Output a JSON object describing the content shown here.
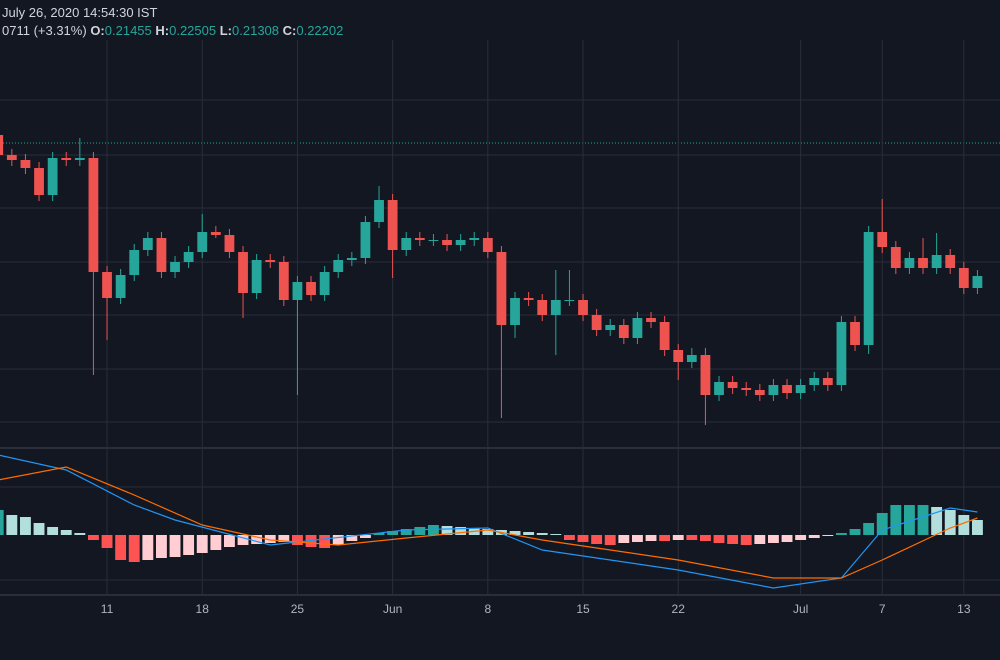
{
  "header": {
    "datetime": "July 26, 2020 14:54:30 IST",
    "change": "0711 (+3.31%)",
    "ohlc": [
      {
        "label": "O:",
        "value": 0.21455
      },
      {
        "label": "H:",
        "value": 0.22505
      },
      {
        "label": "L:",
        "value": 0.21308
      },
      {
        "label": "C:",
        "value": 0.22202
      }
    ]
  },
  "chart_data": {
    "type": "candlestick",
    "up_color": "#26a69a",
    "down_color": "#ef5350",
    "xlim": [
      0.13,
      73.66
    ],
    "ylim": [
      0.18,
      0.2845
    ],
    "xticks": [
      {
        "value": 8,
        "label": "11"
      },
      {
        "value": 15,
        "label": "18"
      },
      {
        "value": 22,
        "label": "25"
      },
      {
        "value": 29,
        "label": "Jun"
      },
      {
        "value": 36,
        "label": "8"
      },
      {
        "value": 43,
        "label": "15"
      },
      {
        "value": 50,
        "label": "22"
      },
      {
        "value": 59,
        "label": "Jul"
      },
      {
        "value": 65,
        "label": "7"
      },
      {
        "value": 71,
        "label": "13"
      }
    ],
    "open": [
      0.25825,
      0.25325,
      0.252,
      0.25,
      0.24325,
      0.2525,
      0.252,
      0.2525,
      0.224,
      0.2175,
      0.22325,
      0.2295,
      0.2325,
      0.224,
      0.2265,
      0.229,
      0.234,
      0.23325,
      0.229,
      0.21875,
      0.227,
      0.2265,
      0.217,
      0.2215,
      0.21825,
      0.224,
      0.227,
      0.2275,
      0.2365,
      0.242,
      0.2295,
      0.2325,
      0.232,
      0.232,
      0.23075,
      0.232,
      0.2325,
      0.229,
      0.21075,
      0.2175,
      0.217,
      0.21325,
      0.217,
      0.217,
      0.21325,
      0.2095,
      0.21075,
      0.2075,
      0.2125,
      0.2115,
      0.2045,
      0.2015,
      0.20325,
      0.19325,
      0.1965,
      0.195,
      0.1945,
      0.19325,
      0.19575,
      0.19375,
      0.19575,
      0.1975,
      0.19575,
      0.2115,
      0.20575,
      0.234,
      0.23025,
      0.225,
      0.2275,
      0.225,
      0.22825,
      0.225,
      0.22
    ],
    "high": [
      0.25975,
      0.25475,
      0.2535,
      0.2515,
      0.254,
      0.254,
      0.2575,
      0.254,
      0.2255,
      0.22475,
      0.231,
      0.234,
      0.234,
      0.228,
      0.2305,
      0.2385,
      0.2355,
      0.23475,
      0.2305,
      0.2285,
      0.2285,
      0.228,
      0.223,
      0.223,
      0.2255,
      0.2285,
      0.229,
      0.238,
      0.2455,
      0.2435,
      0.234,
      0.234,
      0.2335,
      0.2335,
      0.2335,
      0.234,
      0.234,
      0.2305,
      0.219,
      0.219,
      0.2185,
      0.2245,
      0.2245,
      0.2185,
      0.21475,
      0.21225,
      0.21225,
      0.214,
      0.214,
      0.213,
      0.206,
      0.205,
      0.205,
      0.198,
      0.198,
      0.1965,
      0.196,
      0.19725,
      0.19725,
      0.19725,
      0.199,
      0.199,
      0.213,
      0.213,
      0.2355,
      0.24225,
      0.23175,
      0.229,
      0.2325,
      0.23375,
      0.22975,
      0.2265,
      0.2245
    ],
    "low": [
      0.25175,
      0.2505,
      0.2485,
      0.24175,
      0.24175,
      0.2505,
      0.2505,
      0.19825,
      0.207,
      0.216,
      0.22175,
      0.228,
      0.2225,
      0.2225,
      0.225,
      0.2275,
      0.2325,
      0.2275,
      0.2125,
      0.21725,
      0.225,
      0.2155,
      0.19325,
      0.21675,
      0.21675,
      0.2225,
      0.2255,
      0.226,
      0.235,
      0.2225,
      0.228,
      0.2305,
      0.2305,
      0.22925,
      0.22925,
      0.2305,
      0.2275,
      0.1875,
      0.2075,
      0.2155,
      0.21175,
      0.20325,
      0.2155,
      0.21175,
      0.208,
      0.208,
      0.206,
      0.206,
      0.21,
      0.203,
      0.197,
      0.2,
      0.18575,
      0.19175,
      0.1935,
      0.193,
      0.19175,
      0.19175,
      0.19225,
      0.19225,
      0.19425,
      0.19425,
      0.19425,
      0.20425,
      0.2035,
      0.22875,
      0.2235,
      0.2235,
      0.2235,
      0.2235,
      0.2235,
      0.2185,
      0.2185
    ],
    "close": [
      0.25325,
      0.252,
      0.25,
      0.24325,
      0.2525,
      0.252,
      0.2525,
      0.224,
      0.2175,
      0.22325,
      0.2295,
      0.2325,
      0.224,
      0.2265,
      0.229,
      0.234,
      0.23325,
      0.229,
      0.21875,
      0.227,
      0.2265,
      0.217,
      0.2215,
      0.21825,
      0.224,
      0.227,
      0.2275,
      0.2365,
      0.242,
      0.2295,
      0.2325,
      0.232,
      0.232,
      0.23075,
      0.232,
      0.2325,
      0.229,
      0.21075,
      0.2175,
      0.217,
      0.21325,
      0.217,
      0.217,
      0.21325,
      0.2095,
      0.21075,
      0.2075,
      0.2125,
      0.2115,
      0.2045,
      0.2015,
      0.20325,
      0.19325,
      0.1965,
      0.195,
      0.1945,
      0.19325,
      0.19575,
      0.19375,
      0.19575,
      0.1975,
      0.19575,
      0.2115,
      0.20575,
      0.234,
      0.23025,
      0.225,
      0.2275,
      0.225,
      0.22825,
      0.225,
      0.22,
      0.223
    ],
    "macd": {
      "ylim": [
        -0.006,
        0.0085
      ],
      "histogram": [
        0.0025,
        0.002,
        0.0018,
        0.0012,
        0.0008,
        0.0005,
        0.0002,
        -0.0005,
        -0.0013,
        -0.0025,
        -0.0027,
        -0.0025,
        -0.0023,
        -0.0022,
        -0.002,
        -0.0018,
        -0.0015,
        -0.0012,
        -0.001,
        -0.0009,
        -0.0008,
        -0.0007,
        -0.001,
        -0.0012,
        -0.0013,
        -0.001,
        -0.0006,
        -0.0003,
        0.0002,
        0.0004,
        0.0006,
        0.0008,
        0.001,
        0.0009,
        0.0008,
        0.0007,
        0.0006,
        0.0005,
        0.0004,
        0.0003,
        0.0002,
        0.0001,
        -0.0005,
        -0.0007,
        -0.0009,
        -0.001,
        -0.0008,
        -0.0007,
        -0.0006,
        -0.0006,
        -0.0005,
        -0.0005,
        -0.0006,
        -0.0008,
        -0.0009,
        -0.001,
        -0.0009,
        -0.0008,
        -0.0007,
        -0.0005,
        -0.0003,
        -0.0001,
        0.0002,
        0.0006,
        0.0012,
        0.0022,
        0.003,
        0.003,
        0.003,
        0.0028,
        0.0025,
        0.002,
        0.0015
      ],
      "lines": [
        {
          "color": "#2196f3",
          "x": [
            0,
            5,
            10,
            13,
            20,
            30,
            36,
            40,
            50,
            57,
            62,
            65,
            70,
            72
          ],
          "values": [
            0.008,
            0.0065,
            0.003,
            0.0015,
            -0.001,
            0.0005,
            0.0007,
            -0.0015,
            -0.0035,
            -0.0053,
            -0.0043,
            0.0005,
            0.0027,
            0.0023
          ]
        },
        {
          "color": "#ff6d00",
          "x": [
            0,
            5,
            10,
            15,
            20,
            25,
            30,
            36,
            40,
            50,
            57,
            62,
            65,
            70,
            72
          ],
          "values": [
            0.0055,
            0.0068,
            0.004,
            0.001,
            -0.0005,
            -0.001,
            -0.0003,
            0.0005,
            -0.0005,
            -0.0025,
            -0.0043,
            -0.0043,
            -0.0025,
            0.0007,
            0.0017
          ]
        }
      ]
    }
  }
}
